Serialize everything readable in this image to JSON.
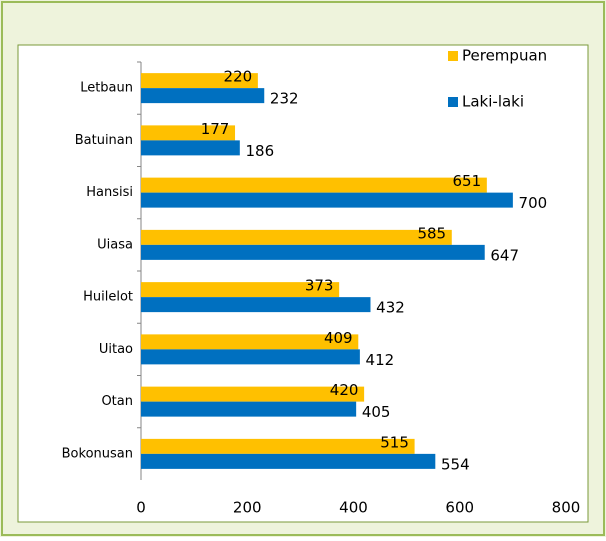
{
  "chart_data": {
    "type": "hbar",
    "categories": [
      "Letbaun",
      "Batuinan",
      "Hansisi",
      "Uiasa",
      "Huilelot",
      "Uitao",
      "Otan",
      "Bokonusan"
    ],
    "series": [
      {
        "name": "Perempuan",
        "color": "#ffc000",
        "values": [
          220,
          177,
          651,
          585,
          373,
          409,
          420,
          515
        ]
      },
      {
        "name": "Laki-laki",
        "color": "#0070c0",
        "values": [
          232,
          186,
          700,
          647,
          432,
          412,
          405,
          554
        ]
      }
    ],
    "xlim": [
      0,
      800
    ],
    "xticks": [
      0,
      200,
      400,
      600,
      800
    ],
    "grid": false,
    "legend": "top-right"
  }
}
